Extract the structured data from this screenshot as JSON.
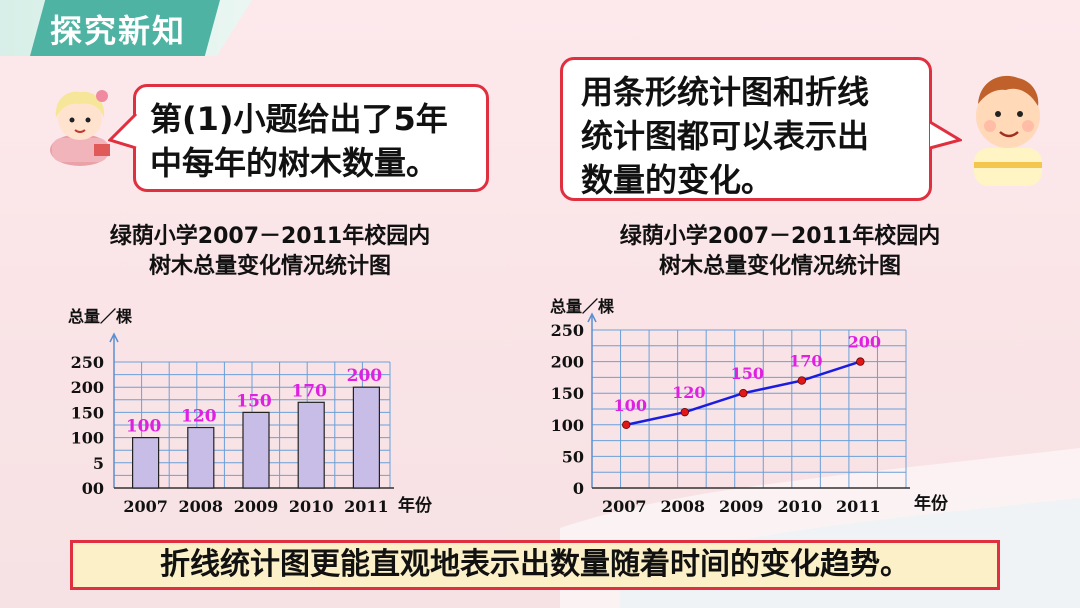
{
  "header": {
    "title": "探究新知"
  },
  "left_bubble": {
    "lines": [
      "第(1)小题给出了5年",
      "中每年的树木数量。"
    ]
  },
  "right_bubble": {
    "lines": [
      "用条形统计图和折线",
      "统计图都可以表示出",
      "数量的变化。"
    ]
  },
  "chart_data": [
    {
      "type": "bar",
      "title_lines": [
        "绿荫小学2007－2011年校园内",
        "树木总量变化情况统计图"
      ],
      "ylabel": "总量／棵",
      "xlabel": "年份",
      "categories": [
        "2007",
        "2008",
        "2009",
        "2010",
        "2011"
      ],
      "values": [
        100,
        120,
        150,
        170,
        200
      ],
      "data_labels": [
        "100",
        "120",
        "150",
        "170",
        "200"
      ],
      "ytick_labels": [
        "00",
        "5",
        "100",
        "150",
        "200",
        "250"
      ],
      "ylim": [
        0,
        250
      ],
      "grid": true,
      "bar_color": "#c8bde6",
      "label_color": "#e020e0"
    },
    {
      "type": "line",
      "title_lines": [
        "绿荫小学2007－2011年校园内",
        "树木总量变化情况统计图"
      ],
      "ylabel": "总量／棵",
      "xlabel": "年份",
      "categories": [
        "2007",
        "2008",
        "2009",
        "2010",
        "2011"
      ],
      "values": [
        100,
        120,
        150,
        170,
        200
      ],
      "data_labels": [
        "100",
        "120",
        "150",
        "170",
        "200"
      ],
      "ytick_labels": [
        "0",
        "50",
        "100",
        "150",
        "200",
        "250"
      ],
      "ylim": [
        0,
        250
      ],
      "grid": true,
      "line_color": "#1c1ce0",
      "point_color": "#e01818",
      "label_color": "#e020e0"
    }
  ],
  "conclusion": {
    "text": "折线统计图更能直观地表示出数量随着时间的变化趋势。"
  }
}
